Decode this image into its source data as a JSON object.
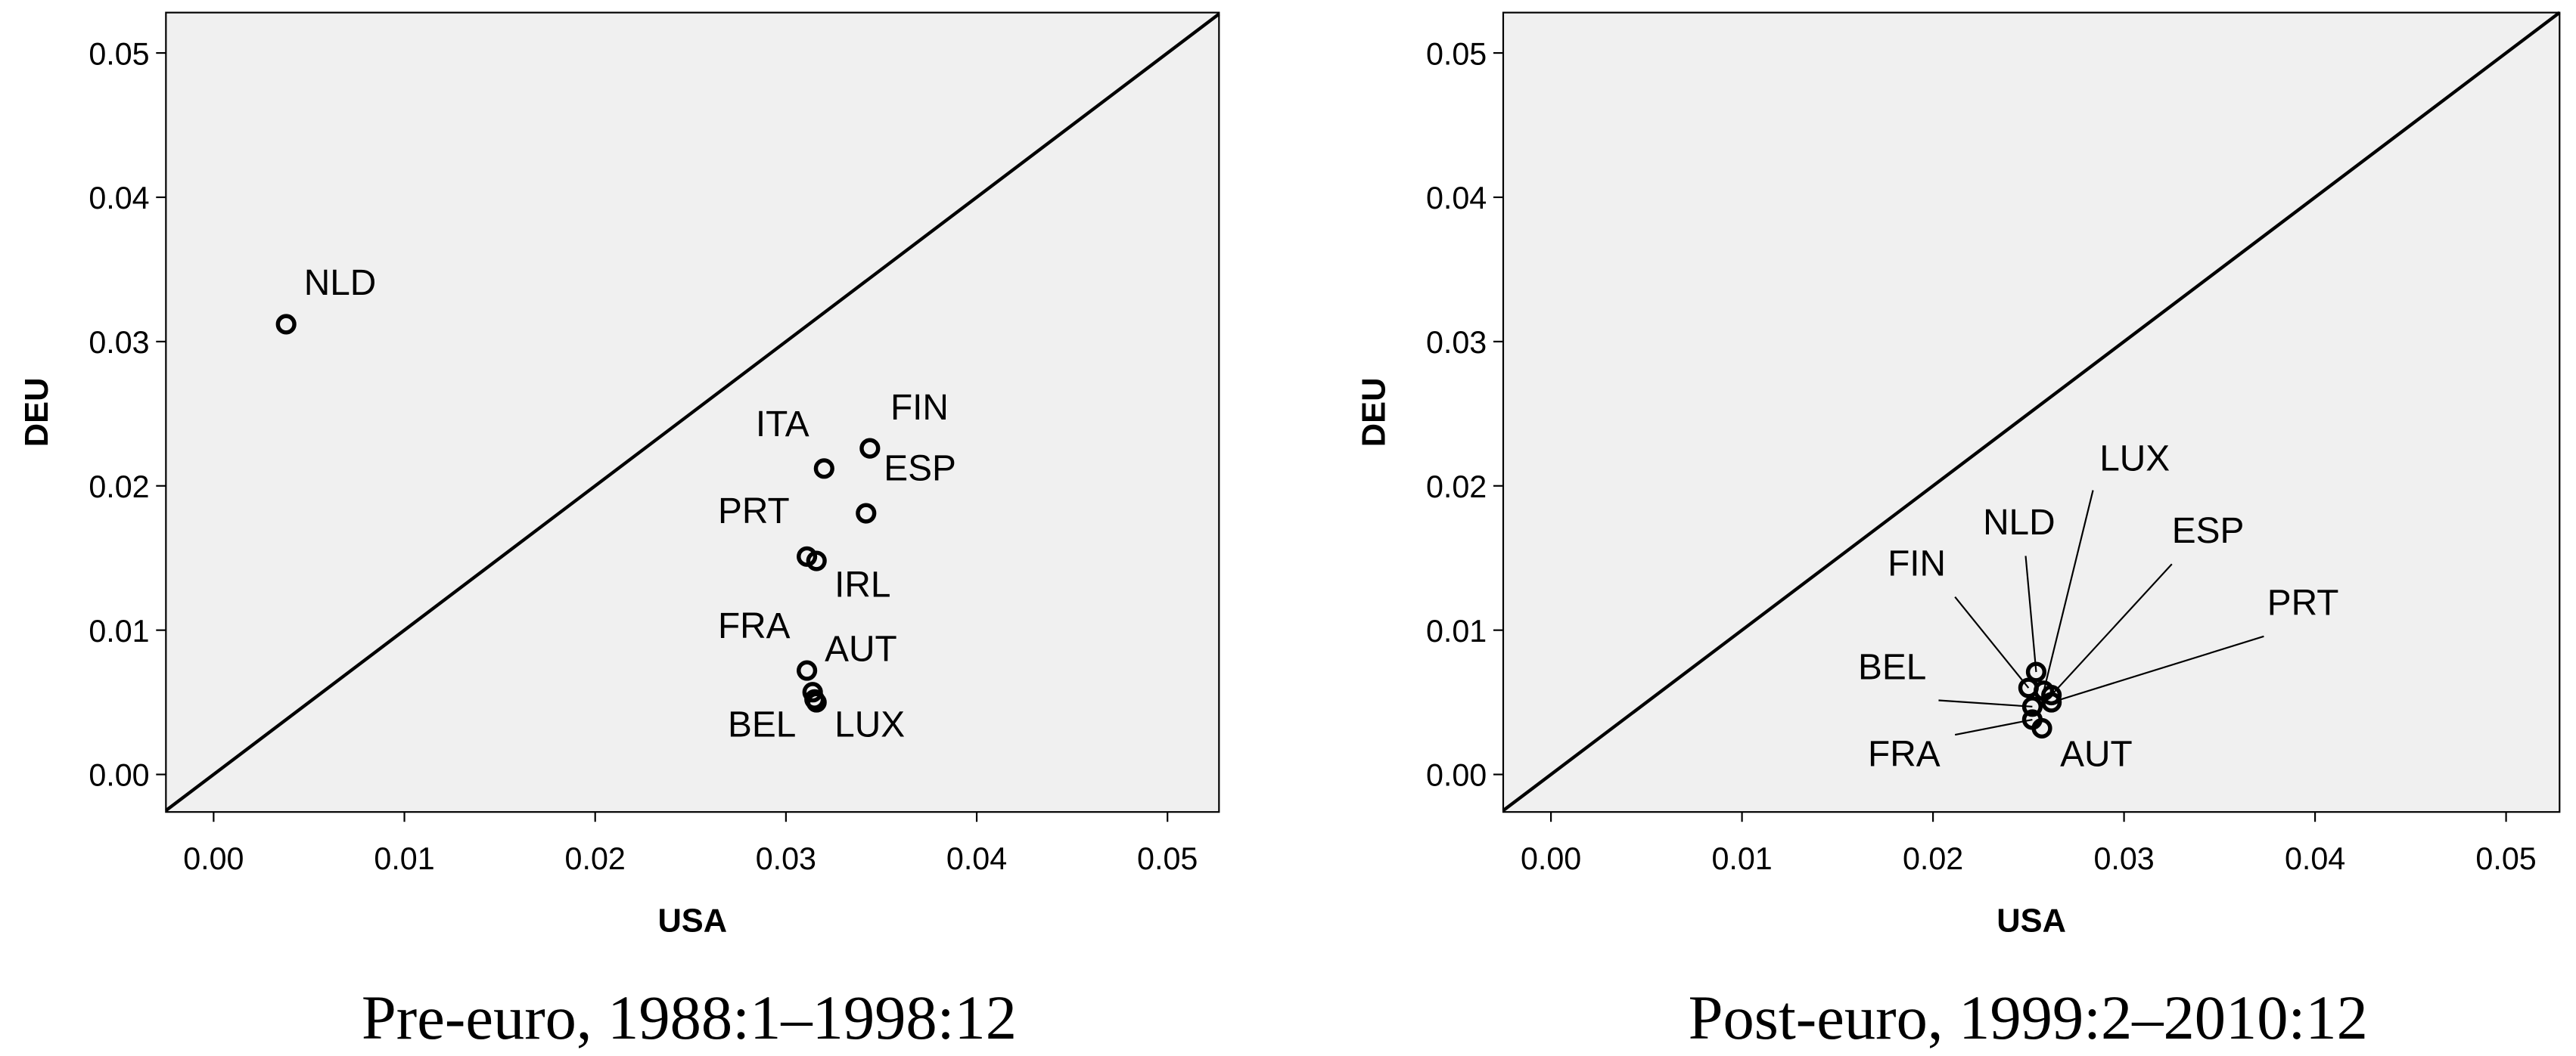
{
  "chart_data": [
    {
      "type": "scatter",
      "caption": "Pre-euro, 1988:1–1998:12",
      "x_label": "USA",
      "y_label": "DEU",
      "diagonal": true,
      "labels": [
        "NLD",
        "ITA",
        "FIN",
        "ESP",
        "PRT",
        "IRL",
        "FRA",
        "AUT",
        "BEL",
        "LUX"
      ],
      "x": [
        0.0038,
        0.032,
        0.0344,
        0.0342,
        0.0311,
        0.0316,
        0.0311,
        0.0314,
        0.0315,
        0.0316
      ],
      "values": [
        0.0312,
        0.0212,
        0.0226,
        0.0181,
        0.0151,
        0.0148,
        0.0072,
        0.0057,
        0.0052,
        0.005
      ],
      "xlim": [
        -0.0025,
        0.0527
      ],
      "ylim": [
        -0.0026,
        0.0528
      ],
      "xticks": [
        {
          "value": 0,
          "label": "0.00"
        },
        {
          "value": 0.01,
          "label": "0.01"
        },
        {
          "value": 0.02,
          "label": "0.02"
        },
        {
          "value": 0.03,
          "label": "0.03"
        },
        {
          "value": 0.04,
          "label": "0.04"
        },
        {
          "value": 0.05,
          "label": "0.05"
        }
      ],
      "yticks": [
        {
          "value": 0,
          "label": "0.00"
        },
        {
          "value": 0.01,
          "label": "0.01"
        },
        {
          "value": 0.02,
          "label": "0.02"
        },
        {
          "value": 0.03,
          "label": "0.03"
        },
        {
          "value": 0.04,
          "label": "0.04"
        },
        {
          "value": 0.05,
          "label": "0.05"
        }
      ]
    },
    {
      "type": "scatter",
      "caption": "Post-euro, 1999:2–2010:12",
      "x_label": "USA",
      "y_label": "DEU",
      "diagonal": true,
      "labels": [
        "FIN",
        "NLD",
        "LUX",
        "ESP",
        "PRT",
        "BEL",
        "FRA",
        "AUT"
      ],
      "x": [
        0.025,
        0.0254,
        0.0258,
        0.0262,
        0.0262,
        0.0252,
        0.0252,
        0.0257
      ],
      "values": [
        0.006,
        0.0071,
        0.0058,
        0.0055,
        0.005,
        0.0047,
        0.0038,
        0.0032
      ],
      "xlim": [
        -0.0025,
        0.0528
      ],
      "ylim": [
        -0.0026,
        0.0528
      ],
      "xticks": [
        {
          "value": 0,
          "label": "0.00"
        },
        {
          "value": 0.01,
          "label": "0.01"
        },
        {
          "value": 0.02,
          "label": "0.02"
        },
        {
          "value": 0.03,
          "label": "0.03"
        },
        {
          "value": 0.04,
          "label": "0.04"
        },
        {
          "value": 0.05,
          "label": "0.05"
        }
      ],
      "yticks": [
        {
          "value": 0,
          "label": "0.00"
        },
        {
          "value": 0.01,
          "label": "0.01"
        },
        {
          "value": 0.02,
          "label": "0.02"
        },
        {
          "value": 0.03,
          "label": "0.03"
        },
        {
          "value": 0.04,
          "label": "0.04"
        },
        {
          "value": 0.05,
          "label": "0.05"
        }
      ]
    }
  ]
}
